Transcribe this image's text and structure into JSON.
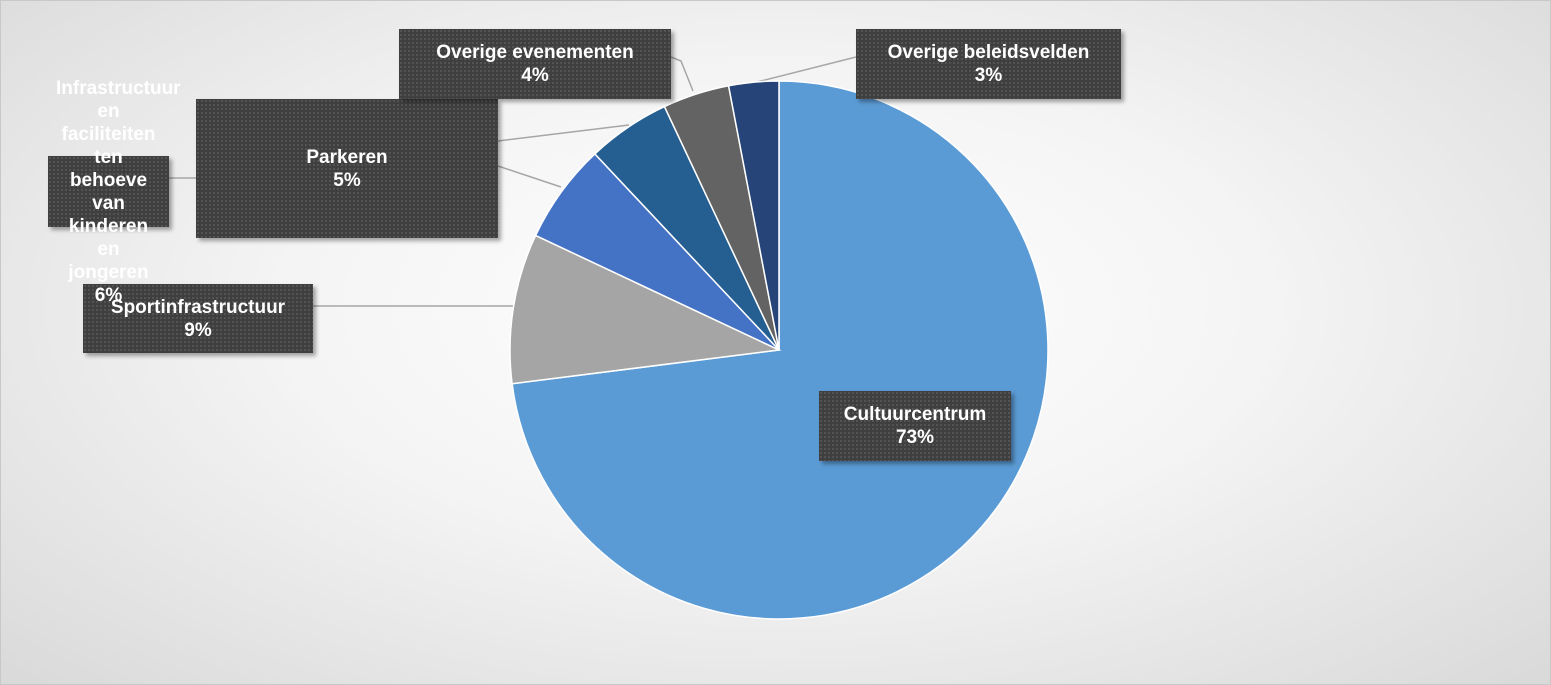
{
  "chart_data": {
    "type": "pie",
    "categories": [
      "Cultuurcentrum",
      "Sportinfrastructuur",
      "Infrastructuur en faciliteiten ten behoeve van kinderen en jongeren",
      "Parkeren",
      "Overige evenementen",
      "Overige beleidsvelden"
    ],
    "values": [
      73,
      9,
      6,
      5,
      4,
      3
    ],
    "value_labels": [
      "73%",
      "9%",
      "6%",
      "5%",
      "4%",
      "3%"
    ],
    "colors": [
      "#5b9bd5",
      "#a5a5a5",
      "#4472c4",
      "#255e91",
      "#636363",
      "#264478"
    ]
  }
}
